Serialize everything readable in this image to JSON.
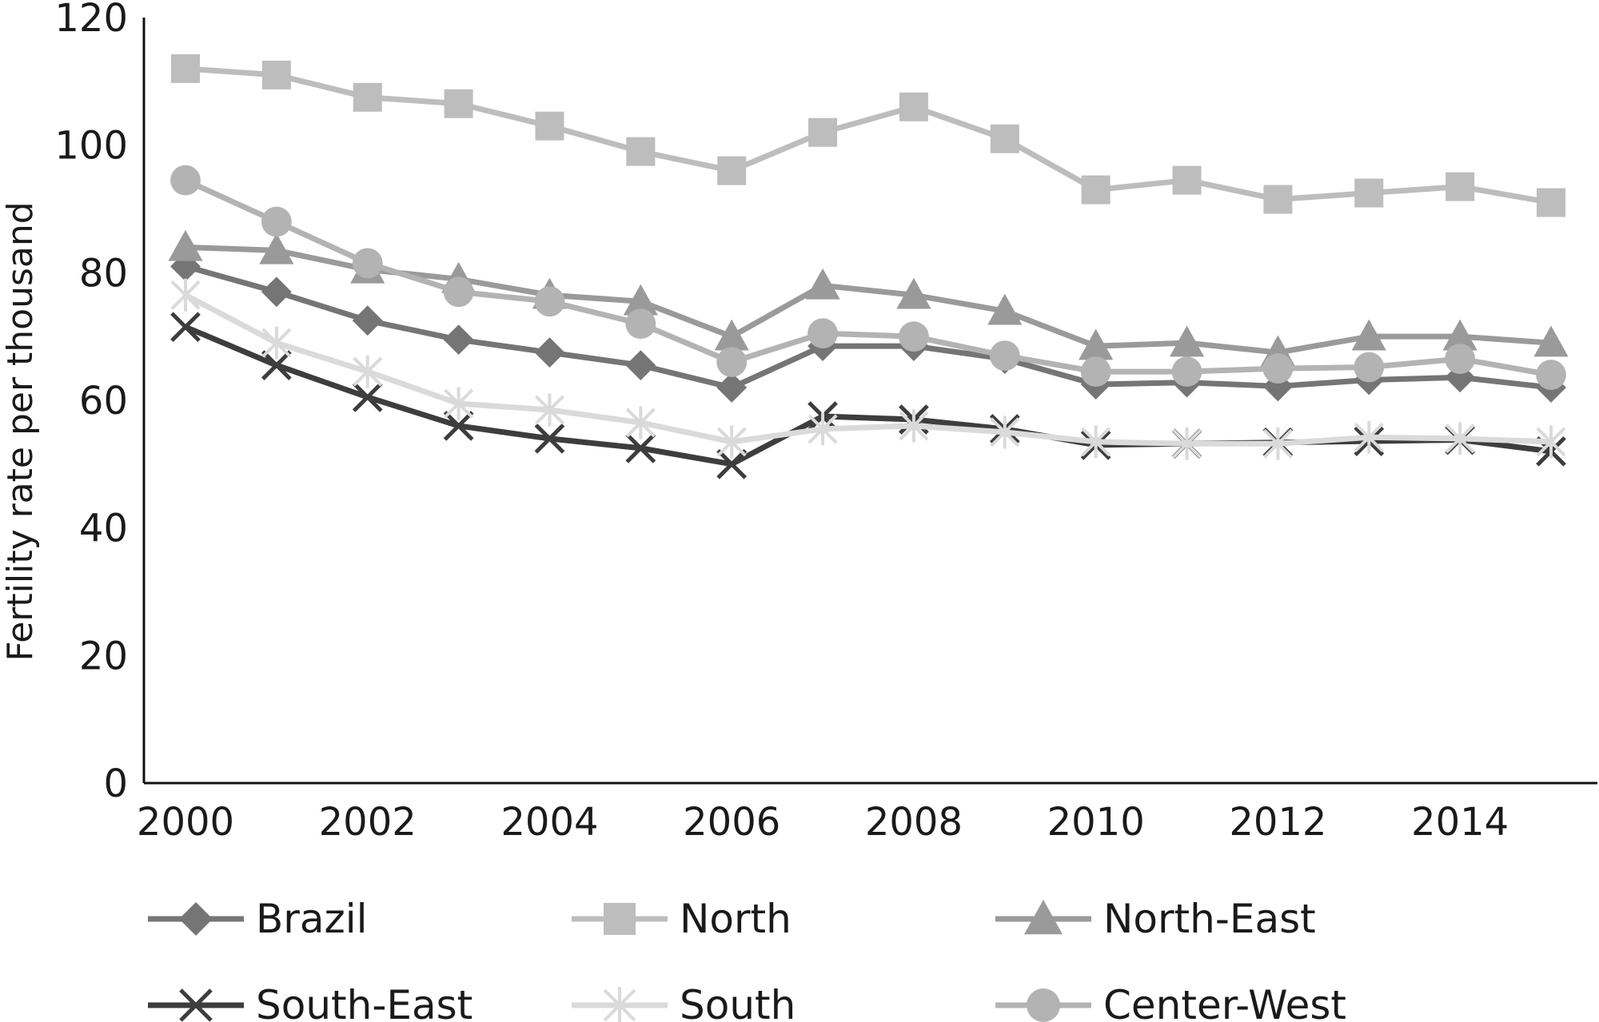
{
  "chart_data": {
    "type": "line",
    "title": "",
    "xlabel": "",
    "ylabel": "Fertility rate per thousand",
    "x": [
      2000,
      2001,
      2002,
      2003,
      2004,
      2005,
      2006,
      2007,
      2008,
      2009,
      2010,
      2011,
      2012,
      2013,
      2014,
      2015
    ],
    "xticks": [
      "2000",
      "2002",
      "2004",
      "2006",
      "2008",
      "2010",
      "2012",
      "2014"
    ],
    "yticks": [
      "0",
      "20",
      "40",
      "60",
      "80",
      "100",
      "120"
    ],
    "ylim": [
      0,
      120
    ],
    "xlim": [
      2000,
      2015
    ],
    "grid": false,
    "legend_position": "bottom",
    "series": [
      {
        "name": "Brazil",
        "marker": "diamond",
        "color": "#757575",
        "values": [
          81,
          77,
          72.5,
          69.5,
          67.5,
          65.5,
          62,
          68.5,
          68.5,
          66.5,
          62.5,
          62.8,
          62.2,
          63.2,
          63.6,
          62
        ]
      },
      {
        "name": "North",
        "marker": "square",
        "color": "#bdbdbd",
        "values": [
          112,
          111,
          107.5,
          106.5,
          103,
          99,
          96,
          102,
          106,
          101,
          93,
          94.5,
          91.5,
          92.5,
          93.5,
          91
        ]
      },
      {
        "name": "North-East",
        "marker": "triangle",
        "color": "#9a9a9a",
        "values": [
          84,
          83.5,
          80.5,
          79,
          76.5,
          75.5,
          70,
          78,
          76.5,
          74,
          68.5,
          69,
          67.5,
          70,
          70,
          69
        ]
      },
      {
        "name": "South-East",
        "marker": "x",
        "color": "#3d3d3d",
        "values": [
          71.5,
          65.5,
          60.5,
          56,
          54,
          52.5,
          50,
          57.5,
          57,
          55.5,
          53,
          53.2,
          53.4,
          53.6,
          53.8,
          52
        ]
      },
      {
        "name": "South",
        "marker": "asterisk",
        "color": "#dadada",
        "values": [
          76.5,
          69,
          64.5,
          59.5,
          58.5,
          56.5,
          53.5,
          55.5,
          56,
          55,
          53.5,
          53.2,
          53.2,
          54.2,
          54,
          53.5
        ]
      },
      {
        "name": "Center-West",
        "marker": "circle",
        "color": "#b3b3b3",
        "values": [
          94.5,
          88,
          81.5,
          77,
          75.5,
          72,
          66,
          70.5,
          70,
          67,
          64.5,
          64.5,
          65,
          65.2,
          66.5,
          64
        ]
      }
    ]
  }
}
